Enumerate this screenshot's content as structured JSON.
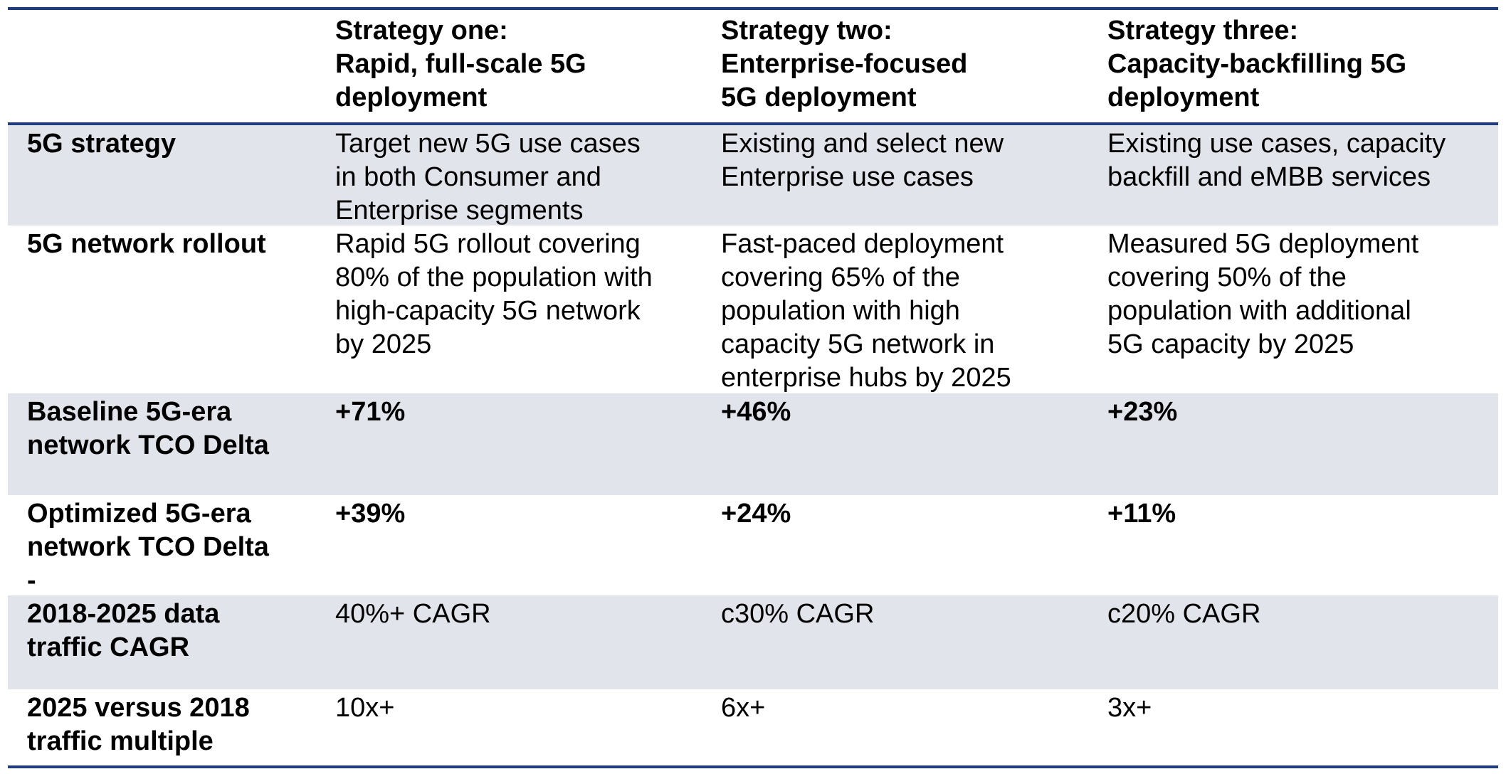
{
  "table": {
    "header": [
      [
        "Strategy one:",
        "Rapid, full-scale 5G",
        "deployment"
      ],
      [
        "Strategy two:",
        "Enterprise-focused",
        "5G deployment"
      ],
      [
        "Strategy three:",
        "Capacity-backfilling 5G",
        "deployment"
      ]
    ],
    "rows": [
      {
        "label": [
          "5G strategy"
        ],
        "shaded": true,
        "emphasis": false,
        "cells": [
          [
            "Target new 5G use cases",
            "in both Consumer and",
            "Enterprise segments"
          ],
          [
            "Existing and select new",
            "Enterprise use cases"
          ],
          [
            "Existing use cases, capacity",
            "backfill and eMBB services"
          ]
        ]
      },
      {
        "label": [
          "5G network rollout"
        ],
        "shaded": false,
        "emphasis": false,
        "cells": [
          [
            "Rapid 5G rollout covering",
            "80% of the population with",
            "high-capacity 5G network",
            "by 2025"
          ],
          [
            "Fast-paced deployment",
            "covering 65% of the",
            "population with high",
            "capacity 5G network in",
            "enterprise hubs by 2025"
          ],
          [
            "Measured 5G deployment",
            "covering 50% of the",
            "population with additional",
            "5G capacity by 2025"
          ]
        ]
      },
      {
        "label": [
          "Baseline 5G-era",
          "network TCO Delta"
        ],
        "shaded": true,
        "emphasis": true,
        "cells": [
          [
            "+71%"
          ],
          [
            "+46%"
          ],
          [
            "+23%"
          ]
        ]
      },
      {
        "label": [
          "Optimized 5G-era",
          "network TCO Delta",
          "-"
        ],
        "shaded": false,
        "emphasis": true,
        "cells": [
          [
            "+39%"
          ],
          [
            "+24%"
          ],
          [
            "+11%"
          ]
        ]
      },
      {
        "label": [
          "2018-2025 data",
          "traffic CAGR"
        ],
        "shaded": true,
        "emphasis": false,
        "cells": [
          [
            "40%+ CAGR"
          ],
          [
            "c30% CAGR"
          ],
          [
            "c20% CAGR"
          ]
        ]
      },
      {
        "label": [
          "2025 versus 2018",
          "traffic multiple"
        ],
        "shaded": false,
        "emphasis": false,
        "cells": [
          [
            "10x+"
          ],
          [
            "6x+"
          ],
          [
            "3x+"
          ]
        ]
      }
    ]
  }
}
